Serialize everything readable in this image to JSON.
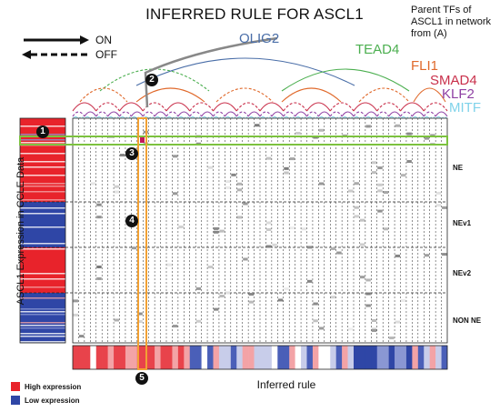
{
  "title": "INFERRED RULE FOR ASCL1",
  "parent_note": "Parent TFs of ASCL1 in network from (A)",
  "legend_arrows": {
    "on": "ON",
    "off": "OFF"
  },
  "tfs": [
    {
      "name": "OLIG2",
      "color": "#4a6ea8"
    },
    {
      "name": "TEAD4",
      "color": "#4caf50"
    },
    {
      "name": "FLI1",
      "color": "#e0692b"
    },
    {
      "name": "SMAD4",
      "color": "#c9304b"
    },
    {
      "name": "KLF2",
      "color": "#8e3fa3"
    },
    {
      "name": "MITF",
      "color": "#7fd3ea"
    }
  ],
  "row_groups": [
    "NE",
    "NEv1",
    "NEv2",
    "NON NE"
  ],
  "y_label": "ASCL1 Expression in CCLE Data",
  "x_label": "Inferred rule",
  "expression_legend": [
    {
      "label": "High expression",
      "color": "#e8232b"
    },
    {
      "label": "Low expression",
      "color": "#2f46a6"
    }
  ],
  "markers": [
    "1",
    "2",
    "3",
    "4",
    "5"
  ],
  "colors": {
    "highlight_row": "#7cc23f",
    "highlight_col": "#f2a134",
    "grid": "#222222"
  }
}
